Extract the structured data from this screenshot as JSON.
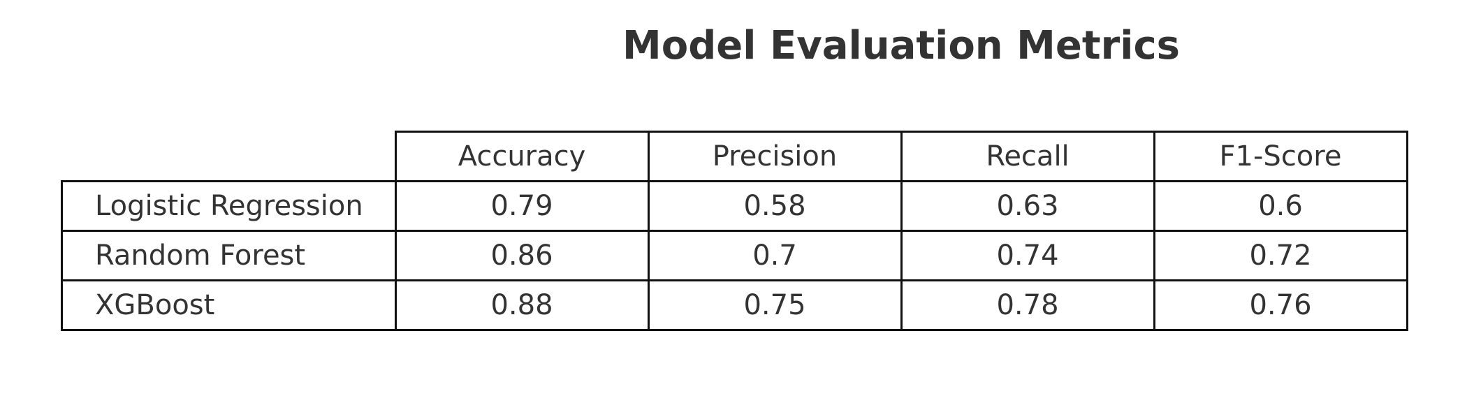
{
  "chart_data": {
    "type": "table",
    "title": "Model Evaluation Metrics",
    "columns": [
      "Accuracy",
      "Precision",
      "Recall",
      "F1-Score"
    ],
    "rows": [
      {
        "label": "Logistic Regression",
        "values": [
          "0.79",
          "0.58",
          "0.63",
          "0.6"
        ]
      },
      {
        "label": "Random Forest",
        "values": [
          "0.86",
          "0.7",
          "0.74",
          "0.72"
        ]
      },
      {
        "label": "XGBoost",
        "values": [
          "0.88",
          "0.75",
          "0.78",
          "0.76"
        ]
      }
    ]
  },
  "colors": {
    "text": "#333333",
    "border": "#111111",
    "background": "#ffffff"
  }
}
